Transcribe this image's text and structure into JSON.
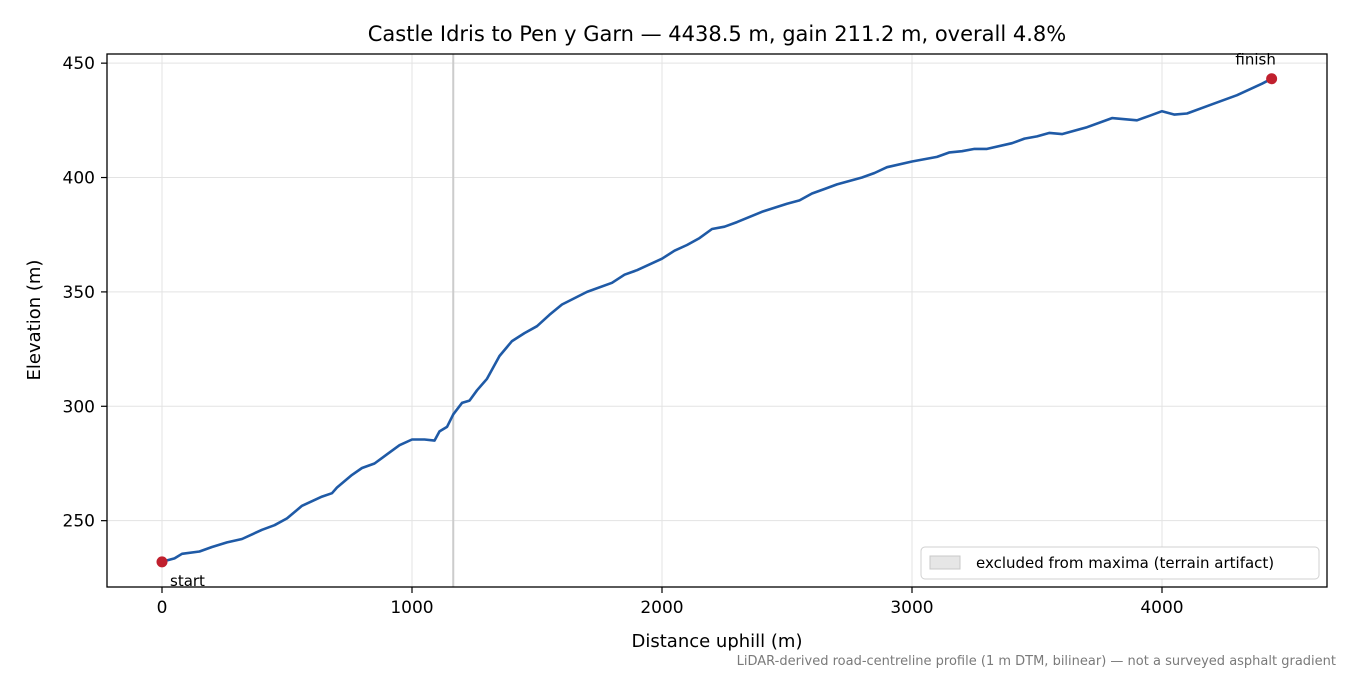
{
  "chart_data": {
    "type": "line",
    "title": "Castle Idris to Pen y Garn — 4438.5 m, gain 211.2 m, overall 4.8%",
    "xlabel": "Distance uphill (m)",
    "ylabel": "Elevation (m)",
    "xlim": [
      -220,
      4660
    ],
    "ylim": [
      221,
      454
    ],
    "x_ticks": [
      0,
      1000,
      2000,
      3000,
      4000
    ],
    "x_tick_labels": [
      "0",
      "1000",
      "2000",
      "3000",
      "4000"
    ],
    "y_ticks": [
      250,
      300,
      350,
      400,
      450
    ],
    "y_tick_labels": [
      "250",
      "300",
      "350",
      "400",
      "450"
    ],
    "grid": true,
    "footnote": "LiDAR-derived road-centreline profile (1 m DTM, bilinear) — not a surveyed asphalt gradient",
    "excluded_band": {
      "x": 1165,
      "legend_label": "excluded from maxima (terrain artifact)",
      "legend_position": "lower-right"
    },
    "series": [
      {
        "color": "#1f5aa6",
        "points": [
          [
            0,
            232.0
          ],
          [
            50,
            233.5
          ],
          [
            80,
            235.5
          ],
          [
            150,
            236.5
          ],
          [
            200,
            238.5
          ],
          [
            260,
            240.5
          ],
          [
            320,
            242.0
          ],
          [
            400,
            246.0
          ],
          [
            450,
            248.0
          ],
          [
            500,
            251.0
          ],
          [
            560,
            256.5
          ],
          [
            600,
            258.5
          ],
          [
            640,
            260.5
          ],
          [
            680,
            262.0
          ],
          [
            700,
            264.5
          ],
          [
            760,
            270.0
          ],
          [
            800,
            273.0
          ],
          [
            850,
            275.0
          ],
          [
            900,
            279.0
          ],
          [
            950,
            283.0
          ],
          [
            1000,
            285.5
          ],
          [
            1050,
            285.5
          ],
          [
            1090,
            285.0
          ],
          [
            1110,
            289.0
          ],
          [
            1140,
            291.0
          ],
          [
            1165,
            296.5
          ],
          [
            1200,
            301.5
          ],
          [
            1230,
            302.5
          ],
          [
            1260,
            307.0
          ],
          [
            1300,
            312.0
          ],
          [
            1350,
            322.0
          ],
          [
            1400,
            328.5
          ],
          [
            1450,
            332.0
          ],
          [
            1500,
            335.0
          ],
          [
            1550,
            340.0
          ],
          [
            1600,
            344.5
          ],
          [
            1700,
            350.0
          ],
          [
            1800,
            354.0
          ],
          [
            1850,
            357.5
          ],
          [
            1900,
            359.5
          ],
          [
            2000,
            364.5
          ],
          [
            2050,
            368.0
          ],
          [
            2100,
            370.5
          ],
          [
            2150,
            373.5
          ],
          [
            2200,
            377.5
          ],
          [
            2250,
            378.5
          ],
          [
            2300,
            380.5
          ],
          [
            2400,
            385.0
          ],
          [
            2500,
            388.5
          ],
          [
            2550,
            390.0
          ],
          [
            2600,
            393.0
          ],
          [
            2650,
            395.0
          ],
          [
            2700,
            397.0
          ],
          [
            2800,
            400.0
          ],
          [
            2850,
            402.0
          ],
          [
            2900,
            404.5
          ],
          [
            3000,
            407.0
          ],
          [
            3100,
            409.0
          ],
          [
            3150,
            411.0
          ],
          [
            3200,
            411.5
          ],
          [
            3250,
            412.5
          ],
          [
            3300,
            412.5
          ],
          [
            3400,
            415.0
          ],
          [
            3450,
            417.0
          ],
          [
            3500,
            418.0
          ],
          [
            3550,
            419.5
          ],
          [
            3600,
            419.0
          ],
          [
            3700,
            422.0
          ],
          [
            3800,
            426.0
          ],
          [
            3850,
            425.5
          ],
          [
            3900,
            425.0
          ],
          [
            3950,
            427.0
          ],
          [
            4000,
            429.0
          ],
          [
            4050,
            427.5
          ],
          [
            4100,
            428.0
          ],
          [
            4200,
            432.0
          ],
          [
            4300,
            436.0
          ],
          [
            4400,
            441.0
          ],
          [
            4438.5,
            443.2
          ]
        ]
      }
    ],
    "markers": [
      {
        "x": 0,
        "y": 232.0,
        "label": "start",
        "color": "#c0202e"
      },
      {
        "x": 4438.5,
        "y": 443.2,
        "label": "finish",
        "color": "#c0202e"
      }
    ]
  }
}
